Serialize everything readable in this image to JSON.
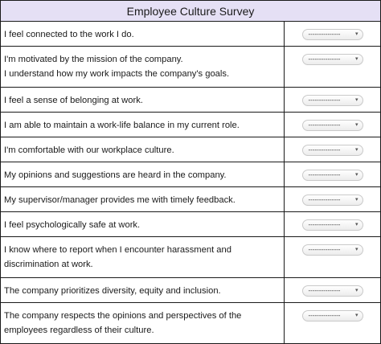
{
  "title": "Employee Culture Survey",
  "select_placeholder": "---------------",
  "chevron_icon": "chevron-down-icon",
  "questions": [
    {
      "lines": [
        "I feel connected to the work I do."
      ]
    },
    {
      "lines": [
        "I'm motivated by the mission of the company.",
        "I understand how my work impacts the company's goals."
      ]
    },
    {
      "lines": [
        "I feel a sense of belonging at work."
      ]
    },
    {
      "lines": [
        "I am able to maintain a work-life balance in my current role."
      ]
    },
    {
      "lines": [
        "I'm comfortable with our workplace culture."
      ]
    },
    {
      "lines": [
        "My opinions and suggestions are heard in the company."
      ]
    },
    {
      "lines": [
        "My supervisor/manager provides me with timely feedback."
      ]
    },
    {
      "lines": [
        "I feel psychologically safe at work."
      ]
    },
    {
      "lines": [
        "I know where to report when I encounter harassment and",
        "discrimination at work."
      ]
    },
    {
      "lines": [
        "The company prioritizes diversity, equity and inclusion."
      ]
    },
    {
      "lines": [
        "The company respects the opinions and perspectives of the",
        "employees regardless of their culture."
      ]
    }
  ]
}
